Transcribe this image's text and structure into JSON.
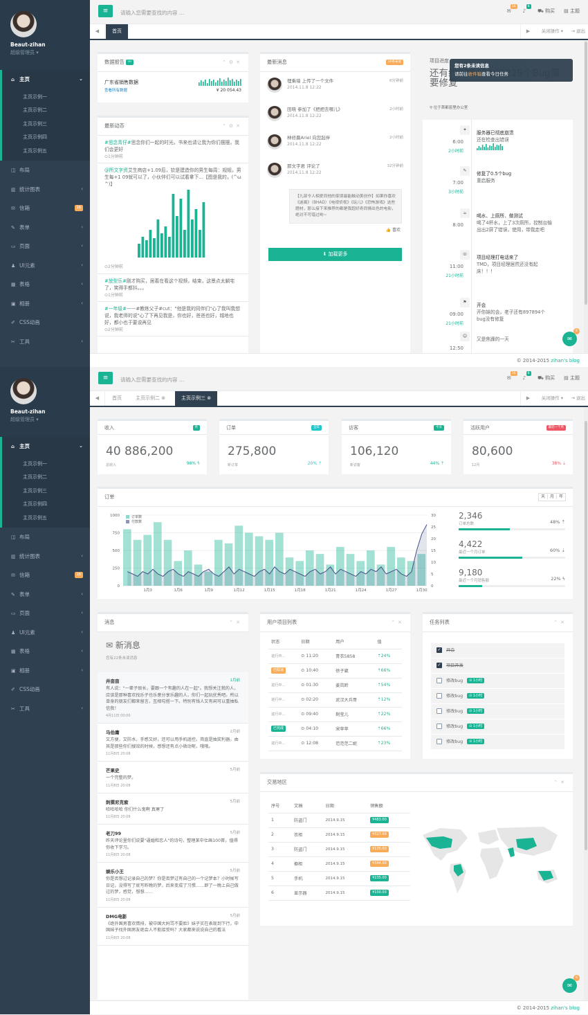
{
  "profile": {
    "name": "Beaut-zihan",
    "role": "超级管理员 ▾"
  },
  "nav": {
    "home": "主页",
    "subs": [
      "主页示例一",
      "主页示例二",
      "主页示例三",
      "主页示例四",
      "主页示例五"
    ],
    "items": [
      {
        "icon": "◫",
        "label": "布局",
        "arrow": ""
      },
      {
        "icon": "▥",
        "label": "统计图表",
        "arrow": "‹"
      },
      {
        "icon": "✉",
        "label": "信箱",
        "badge": "16"
      },
      {
        "icon": "✎",
        "label": "表单",
        "arrow": "‹"
      },
      {
        "icon": "▭",
        "label": "页面",
        "arrow": "‹"
      },
      {
        "icon": "♟",
        "label": "UI元素",
        "arrow": "‹"
      },
      {
        "icon": "▦",
        "label": "表格",
        "arrow": "‹"
      },
      {
        "icon": "▣",
        "label": "相册",
        "arrow": "‹"
      },
      {
        "icon": "✐",
        "label": "CSS动画",
        "arrow": ""
      },
      {
        "icon": "✂",
        "label": "工具",
        "arrow": "‹"
      }
    ]
  },
  "topbar": {
    "burger": "≡",
    "search_placeholder": "请输入您需要查找的内容 …",
    "mail_count": "16",
    "bell_count": "8",
    "buy": "购买",
    "theme": "主题"
  },
  "tabs1": {
    "prev": "◀",
    "home": "首页",
    "next": "▶",
    "close_ops": "关闭操作 ▾",
    "logout": "⇥ 退出"
  },
  "tabs2": {
    "prev": "◀",
    "t1": "首页",
    "t2": "主页示例二 ⊗",
    "t3": "主页示例三 ⊗",
    "next": "▶",
    "close_ops": "关闭操作 ▾",
    "logout": "⇥ 退出"
  },
  "footer": {
    "copy": "© 2014-2015 ",
    "brand": "zihan's blog"
  },
  "sales": {
    "title": "数据报告",
    "label": "Hr",
    "region": "广东省销售数据",
    "sub": "查看所有数据",
    "amount": "¥ 20 054.43"
  },
  "feed": {
    "title": "最新动态",
    "items": [
      {
        "text1": "#思念青仔#",
        "text2": "思念你们一起的时光，书来也请让我为你们摆摆，我们会更好",
        "time": "⊙1分钟前"
      },
      {
        "text1": "@所文字资",
        "text2": "艾生商店+1.09后，钦是建造你的男生每周：规规，男生每+1 09就可以了，小伙伴们可以试着拿下...【图是我的，(^ω ^)】",
        "time": "⊙2分钟前"
      },
      {
        "text1": "#放型乐#",
        "text2": "刚才购买，居着在看这个视频，结束，这景点太躺宅了，笑得手都抖。。。",
        "time": "⊙1分钟前"
      },
      {
        "text1": "#一年级#",
        "text2": "——#教练父子#cut：\"他是我的同伴们\"心了我叫我想说，我老师的说\"心了下再见我是，你也好，爸爸也好，城地也好，都小也于要说再见",
        "time": "⊙2分钟前"
      }
    ]
  },
  "news": {
    "title": "最新消息",
    "badge": "10条未读",
    "load_more": "⬇ 加载更多",
    "items": [
      {
        "text": "理乘墙 上传了一个文件",
        "date": "2014.11.8 12:22",
        "time": "6分钟前"
      },
      {
        "text": "田晓 参加了《把把去哪儿》",
        "date": "2014.11.8 12:22",
        "time": "2小时前"
      },
      {
        "text": "林修晨Ariel 向您起伴",
        "date": "2014.11.8 12:22",
        "time": "2小时前"
      },
      {
        "text": "那文字君 评论了",
        "date": "2014.11.8 12:22",
        "time": "32分钟前"
      }
    ],
    "quote": "【九部令人相爱同他的家境最能触动美创作】如果你喜欢《迷离》（BHAD）《电视侦视》《玩儿》《恐怖游戏》这些题材，那么接下来推荐的都是我超好奇同情出色的电影，绝对不可错过哟~",
    "like": "👍 喜欢"
  },
  "project": {
    "title": "项目进度",
    "headline": "还有约79842492229个Bug需要修复",
    "location": "⚲ 位于首都恩里办公室",
    "tip_line1": "您有2条未读信息",
    "tip_line2_a": "请前往",
    "tip_line2_b": "收件箱",
    "tip_line2_c": "查看今日任务",
    "timeline": [
      {
        "icon": "✦",
        "t1": "6:00",
        "t2": "2小时前",
        "title": "服务器已彻底崩溃",
        "body": "还在检查出错误"
      },
      {
        "icon": "✎",
        "t1": "7:00",
        "t2": "3小时前",
        "title": "修复了0.5个bug",
        "body": "重启服务"
      },
      {
        "icon": "☕",
        "t1": "8:00",
        "t2": "",
        "title": "喝水、上厕所、做测试",
        "body": "喝了4杯水，上了3次厕所，控制台输出出2屏了错误，使用，带我走吧"
      },
      {
        "icon": "☏",
        "t1": "11:00",
        "t2": "21小时前",
        "title": "项目经理打电话来了",
        "body": "TMD，项目经理居然还没有起床！！！"
      },
      {
        "icon": "⚑",
        "t1": "09:00",
        "t2": "21小时前",
        "title": "开会",
        "body": "开你妹的会，老子还有897894个bug没有修复"
      },
      {
        "icon": "☺",
        "t1": "12:50",
        "t2": "",
        "title": "",
        "body": "又是焦躁的一天"
      }
    ]
  },
  "stats": [
    {
      "title": "收入",
      "label": "月",
      "value": "40 886,200",
      "sub": "总收入",
      "pct": "98% ϟ",
      "color": "#1ab394"
    },
    {
      "title": "订单",
      "label": "全年",
      "value": "275,800",
      "sub": "新订单",
      "pct": "20% ⇡",
      "color": "#23c6c8"
    },
    {
      "title": "访客",
      "label": "今天",
      "value": "106,120",
      "sub": "新访客",
      "pct": "44% ⇡",
      "color": "#1ab394"
    },
    {
      "title": "活跃用户",
      "label": "最近一个月",
      "value": "80,600",
      "sub": "12月",
      "pct": "38% ⇣",
      "color": "#ed5565"
    }
  ],
  "orders": {
    "title": "订单",
    "btns": [
      "天",
      "月",
      "年"
    ],
    "legend": [
      "订单数",
      "付款数"
    ],
    "side": [
      {
        "value": "2,346",
        "label": "订单总数",
        "pct": "48% ⇡",
        "fill": 0.48
      },
      {
        "value": "4,422",
        "label": "最近一个月订单",
        "pct": "60% ⇣",
        "fill": 0.6
      },
      {
        "value": "9,180",
        "label": "最近一个月销售额",
        "pct": "22% ϟ",
        "fill": 0.22
      }
    ]
  },
  "chart_data": {
    "type": "bar",
    "categories": [
      "1月3",
      "1月6",
      "1月9",
      "1月12",
      "1月15",
      "1月18",
      "1月21",
      "1月24",
      "1月27",
      "1月30"
    ],
    "x": [
      1,
      2,
      3,
      4,
      5,
      6,
      7,
      8,
      9,
      10,
      11,
      12,
      13,
      14,
      15,
      16,
      17,
      18,
      19,
      20,
      21,
      22,
      23,
      24,
      25,
      26,
      27,
      28,
      29,
      30,
      31,
      32,
      33,
      34,
      35,
      36,
      37,
      38,
      39,
      40,
      41,
      42,
      43,
      44,
      45,
      46,
      47,
      48,
      49,
      50,
      51,
      52,
      53,
      54,
      55,
      56,
      57,
      58,
      59,
      60
    ],
    "series": [
      {
        "name": "订单数",
        "axis": "left",
        "values": [
          800,
          450,
          650,
          350,
          720,
          500,
          900,
          300,
          650,
          800,
          350,
          700,
          500,
          600,
          300,
          850,
          200,
          800,
          650,
          400,
          600,
          300,
          850,
          500,
          750,
          300,
          700,
          450,
          650,
          500,
          750,
          650,
          400,
          700,
          350,
          850,
          500,
          650,
          450,
          750,
          300,
          800,
          550,
          700,
          450,
          600,
          350,
          750,
          500,
          650,
          300,
          800,
          550,
          700,
          400,
          600,
          350,
          500,
          450,
          950
        ]
      },
      {
        "name": "付款数",
        "axis": "right",
        "type": "line",
        "values": [
          6,
          5,
          4,
          6,
          5,
          7,
          5,
          4,
          6,
          7,
          5,
          4,
          6,
          5,
          4,
          6,
          7,
          5,
          4,
          6,
          8,
          5,
          7,
          6,
          5,
          4,
          6,
          7,
          5,
          8,
          6,
          5,
          7,
          6,
          5,
          4,
          6,
          7,
          5,
          6,
          8,
          5,
          7,
          6,
          5,
          4,
          6,
          5,
          7,
          6,
          8,
          5,
          6,
          7,
          5,
          4,
          6,
          15,
          22,
          26
        ]
      }
    ],
    "ylim": [
      0,
      1000
    ],
    "yticks": [
      0,
      250,
      500,
      750,
      1000
    ],
    "y2lim": [
      0,
      30
    ],
    "y2ticks": [
      0,
      5,
      10,
      15,
      20,
      25,
      30
    ]
  },
  "messages": {
    "title": "消息",
    "heading": "✉ 新消息",
    "sub": "您有22条未读消息",
    "items": [
      {
        "name": "井亩亩",
        "time": "1月前",
        "text": "有人说：\"一辈子很长，要跟一个有趣的人在一起\"。我想关注我的人，应该是那种喜欢找乐子也乐意分享乐趣的人，你们一起玩优秀吧。所以单身的朋友们都来留言，互相勾搭一下。特别有钱人又有闲可以重抽私信我！",
        "date": "4月11日 00:00",
        "hl": true
      },
      {
        "name": "马伯庸",
        "time": "2月前",
        "text": "又方便，又防水，手感又好，还可以用手机遥控。简直是抽奖利器，由其是那些你们搜效的时候，感想还有点小微动呢，哦哦。",
        "date": "11月8日 20:08"
      },
      {
        "name": "芒果史",
        "time": "5月前",
        "text": "一个完整的梦。",
        "date": "11月8日 20:08"
      },
      {
        "name": "刺猬尼克索",
        "time": "5月前",
        "text": "哈哈哈哈 你们什么鬼啊 真寒了",
        "date": "11月8日 20:08"
      },
      {
        "name": "老刀99",
        "time": "5月前",
        "text": "昨天评论里你们说要\"逼婚和恋人\"的诗句，整理某中仕画100首，值得你收下学习。",
        "date": "11月8日 20:08"
      },
      {
        "name": "娱乐小王",
        "time": "5月前",
        "text": "你是否想过记录自己的梦？你是否梦过有自己的一个记梦本？小时候写日记，没得写了就写昨晚的梦，后来变成了习惯……即了一晚上自己做过的梦，感觉，想想……",
        "date": "11月8日 20:08"
      },
      {
        "name": "DMG电影",
        "time": "5月前",
        "text": "《绝外国男喜欢情排，被中国大妈骂不要脸》妹子实在表现到下行，中国妹子找外国男友绝会人不能接受吗？大家都来说说自己的看法",
        "date": "11月8日 20:08"
      }
    ]
  },
  "userproj": {
    "title": "用户项目列表",
    "headers": [
      "状态",
      "日期",
      "用户",
      "值"
    ],
    "rows": [
      {
        "status": "进行中...",
        "label": "",
        "time": "⊙ 11:20",
        "user": "青衣5858",
        "value": "⇡24%"
      },
      {
        "status": "已取消",
        "label": "o",
        "time": "⊙ 10:40",
        "user": "徐子崴",
        "value": "⇡66%"
      },
      {
        "status": "进行中...",
        "label": "",
        "time": "⊙ 01:30",
        "user": "姜岚昕",
        "value": "⇡54%"
      },
      {
        "status": "进行中...",
        "label": "",
        "time": "⊙ 02:20",
        "user": "武汉大兵哥",
        "value": "⇡12%"
      },
      {
        "status": "进行中...",
        "label": "",
        "time": "⊙ 09:40",
        "user": "荆莹儿",
        "value": "⇡22%"
      },
      {
        "status": "已完成",
        "label": "g",
        "time": "⊙ 04:10",
        "user": "宋苹苹",
        "value": "⇡66%"
      },
      {
        "status": "进行中...",
        "label": "",
        "time": "⊙ 12:08",
        "user": "范范范二妮",
        "value": "⇡23%"
      }
    ]
  },
  "tasks": {
    "title": "任务列表",
    "items": [
      {
        "text": "开会",
        "checked": true,
        "tag": ""
      },
      {
        "text": "项目开发",
        "checked": true,
        "tag": ""
      },
      {
        "text": "修改bug",
        "checked": false,
        "tag": "⊙ 1小时"
      },
      {
        "text": "修改bug",
        "checked": false,
        "tag": "⊙ 1小时"
      },
      {
        "text": "修改bug",
        "checked": false,
        "tag": "⊙ 1小时"
      },
      {
        "text": "修改bug",
        "checked": false,
        "tag": "⊙ 1小时"
      },
      {
        "text": "修改bug",
        "checked": false,
        "tag": "⊙ 1小时"
      }
    ]
  },
  "trade": {
    "title": "交易地区",
    "headers": [
      "序号",
      "文稿",
      "日期",
      "销售额"
    ],
    "rows": [
      {
        "n": "1",
        "item": "防盗门",
        "date": "2014.9.15",
        "amt": "¥483.00",
        "c": "g"
      },
      {
        "n": "2",
        "item": "衣柜",
        "date": "2014.9.15",
        "amt": "¥327.00",
        "c": "o"
      },
      {
        "n": "3",
        "item": "防盗门",
        "date": "2014.9.15",
        "amt": "¥125.00",
        "c": "o"
      },
      {
        "n": "4",
        "item": "橱柜",
        "date": "2014.9.15",
        "amt": "¥344.00",
        "c": "o"
      },
      {
        "n": "5",
        "item": "手机",
        "date": "2014.9.15",
        "amt": "¥235.00",
        "c": "g"
      },
      {
        "n": "6",
        "item": "显示器",
        "date": "2014.9.15",
        "amt": "¥100.00",
        "c": "g"
      }
    ]
  },
  "icons": {
    "bell": "bell-icon",
    "mail": "mail-icon",
    "cart": "cart-icon",
    "theme": "theme-icon",
    "chat": "chat-icon"
  }
}
